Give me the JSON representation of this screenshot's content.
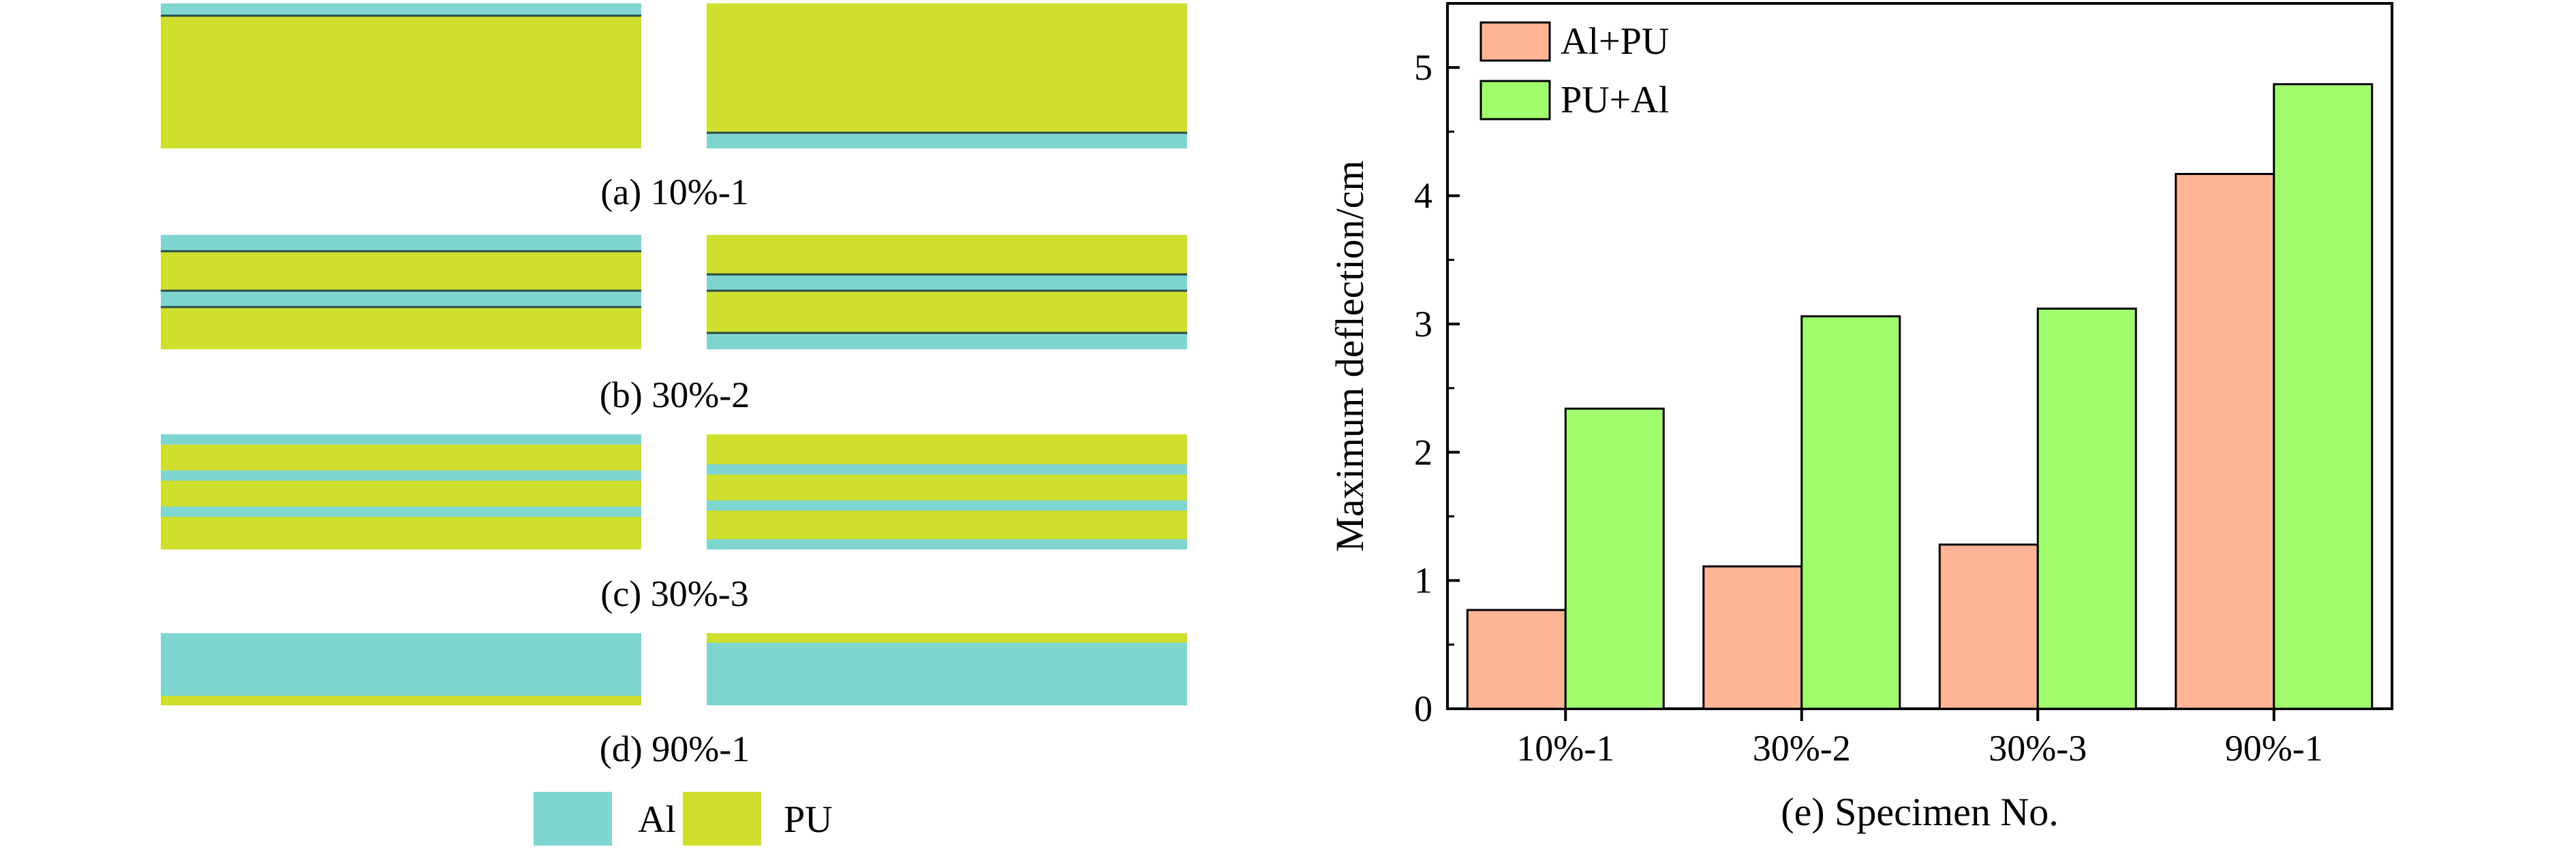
{
  "colors": {
    "al": "#7fd6d0",
    "pu": "#cfdf2e",
    "al_pu": "#fdb596",
    "pu_al": "#a1fd6e"
  },
  "panels": [
    {
      "id": "a",
      "caption": "(a) 10%-1"
    },
    {
      "id": "b",
      "caption": "(b) 30%-2"
    },
    {
      "id": "c",
      "caption": "(c) 30%-3"
    },
    {
      "id": "d",
      "caption": "(d) 90%-1"
    }
  ],
  "material_legend": {
    "al": "Al",
    "pu": "PU"
  },
  "chart_data": {
    "type": "bar",
    "categories": [
      "10%-1",
      "30%-2",
      "30%-3",
      "90%-1"
    ],
    "series": [
      {
        "name": "Al+PU",
        "values": [
          0.77,
          1.11,
          1.28,
          4.17
        ]
      },
      {
        "name": "PU+Al",
        "values": [
          2.34,
          3.06,
          3.12,
          4.87
        ]
      }
    ],
    "xlabel": "(e) Specimen No.",
    "ylabel": "Maximum deflection/cm",
    "ylim": [
      0,
      5.5
    ],
    "yticks": [
      0,
      1,
      2,
      3,
      4,
      5
    ]
  }
}
